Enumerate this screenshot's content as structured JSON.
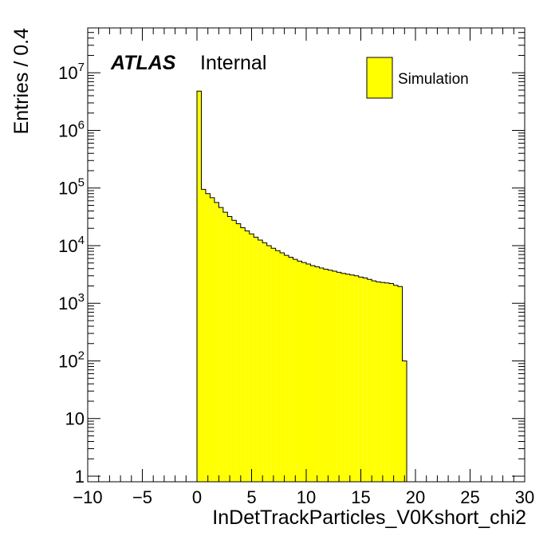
{
  "chart_data": {
    "type": "bar",
    "title": "",
    "xlabel": "InDetTrackParticles_V0Kshort_chi2",
    "ylabel": "Entries / 0.4",
    "xlim": [
      -10,
      30
    ],
    "ylim": [
      0.8,
      60000000
    ],
    "y_scale": "log",
    "bin_width": 0.4,
    "x_ticks": [
      -10,
      -5,
      0,
      5,
      10,
      15,
      20,
      25,
      30
    ],
    "x_tick_labels": [
      "−10",
      "−5",
      "0",
      "5",
      "10",
      "15",
      "20",
      "25",
      "30"
    ],
    "y_ticks": [
      {
        "value": 1,
        "base": "1",
        "exp": ""
      },
      {
        "value": 10,
        "base": "10",
        "exp": ""
      },
      {
        "value": 100,
        "base": "10",
        "exp": "2"
      },
      {
        "value": 1000,
        "base": "10",
        "exp": "3"
      },
      {
        "value": 10000,
        "base": "10",
        "exp": "4"
      },
      {
        "value": 100000,
        "base": "10",
        "exp": "5"
      },
      {
        "value": 1000000,
        "base": "10",
        "exp": "6"
      },
      {
        "value": 10000000,
        "base": "10",
        "exp": "7"
      }
    ],
    "series": [
      {
        "name": "Simulation",
        "color": "#ffff00",
        "edge_color": "#000000",
        "bin_edges_start": 0.0,
        "values": [
          4800000,
          95000,
          80000,
          68000,
          56000,
          46000,
          38000,
          32000,
          27500,
          24000,
          20500,
          18000,
          16000,
          14000,
          12500,
          11200,
          10000,
          9000,
          8200,
          7500,
          6800,
          6300,
          5800,
          5400,
          5100,
          4800,
          4500,
          4300,
          4100,
          3900,
          3750,
          3600,
          3450,
          3300,
          3200,
          3100,
          3000,
          2850,
          2750,
          2600,
          2450,
          2350,
          2300,
          2250,
          2200,
          2050,
          1950,
          100
        ]
      }
    ],
    "legend": {
      "position": "top-right",
      "entries": [
        "Simulation"
      ]
    },
    "atlas_label": {
      "bold": "ATLAS",
      "text": "Internal"
    }
  }
}
